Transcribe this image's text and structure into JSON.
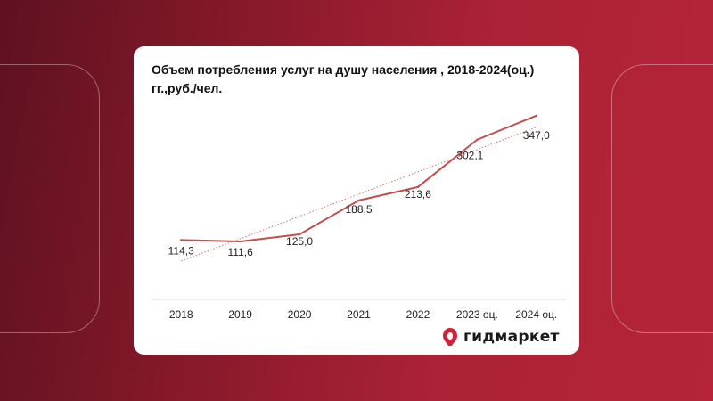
{
  "chart_data": {
    "type": "line",
    "title": "Объем потребления услуг на душу населения , 2018-2024(оц.) гг.,руб./чел.",
    "categories": [
      "2018",
      "2019",
      "2020",
      "2021",
      "2022",
      "2023 оц.",
      "2024 оц."
    ],
    "values": [
      114.3,
      111.6,
      125.0,
      188.5,
      213.6,
      302.1,
      347.0
    ],
    "value_labels": [
      "114,3",
      "111,6",
      "125,0",
      "188,5",
      "213,6",
      "302,1",
      "347,0"
    ],
    "trendline": true,
    "line_color": "#c0504d",
    "trend_color": "#c0504d",
    "grid": false,
    "ylim": [
      60,
      380
    ],
    "xlabel": "",
    "ylabel": ""
  },
  "brand": {
    "name": "гидмаркет",
    "logo_color": "#d1233a"
  }
}
